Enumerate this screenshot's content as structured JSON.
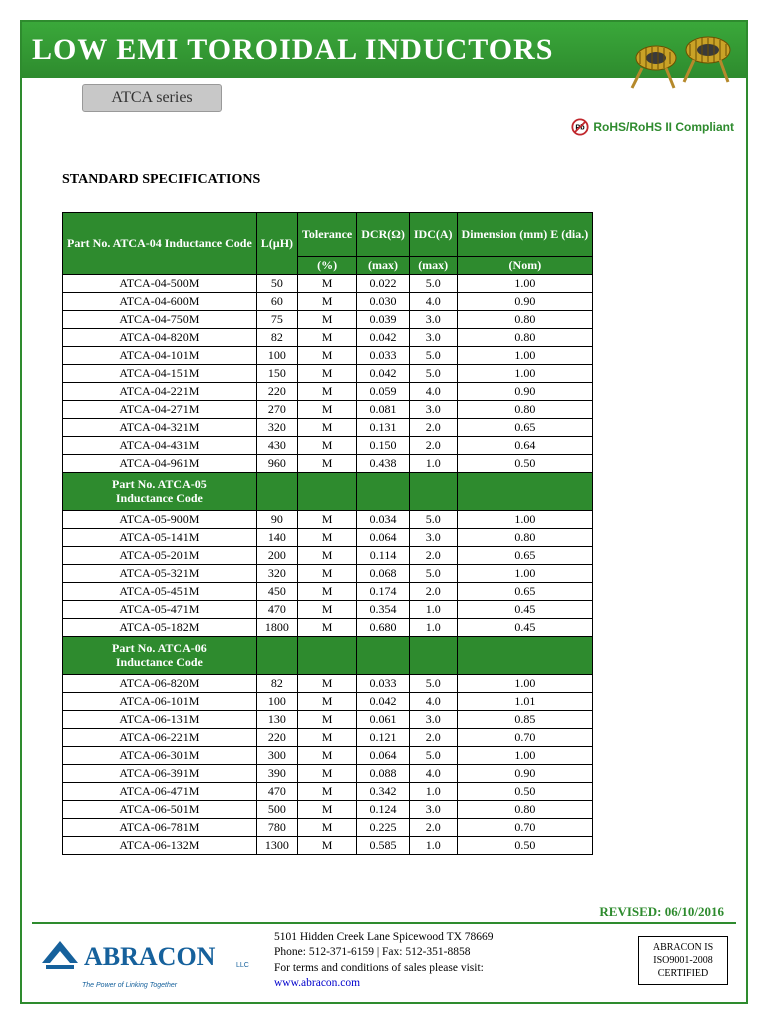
{
  "colors": {
    "green": "#2e8b2e",
    "green_light": "#3aa83a",
    "grey_tab": "#c8c8c8",
    "border": "#000000",
    "link": "#0000cc",
    "logo_blue": "#16619c"
  },
  "title": "LOW EMI TOROIDAL INDUCTORS",
  "series_tab": "ATCA series",
  "rohs_text": "RoHS/RoHS II Compliant",
  "section_title": "STANDARD SPECIFICATIONS",
  "table": {
    "headers_top": [
      "Part No. ATCA-04 Inductance Code",
      "L(µH)",
      "Tolerance",
      "DCR(Ω)",
      "IDC(A)",
      "Dimension (mm) E (dia.)"
    ],
    "headers_sub": [
      "",
      "",
      "(%)",
      "(max)",
      "(max)",
      "(Nom)"
    ],
    "sections": [
      {
        "label": null,
        "rows": [
          [
            "ATCA-04-500M",
            "50",
            "M",
            "0.022",
            "5.0",
            "1.00"
          ],
          [
            "ATCA-04-600M",
            "60",
            "M",
            "0.030",
            "4.0",
            "0.90"
          ],
          [
            "ATCA-04-750M",
            "75",
            "M",
            "0.039",
            "3.0",
            "0.80"
          ],
          [
            "ATCA-04-820M",
            "82",
            "M",
            "0.042",
            "3.0",
            "0.80"
          ],
          [
            "ATCA-04-101M",
            "100",
            "M",
            "0.033",
            "5.0",
            "1.00"
          ],
          [
            "ATCA-04-151M",
            "150",
            "M",
            "0.042",
            "5.0",
            "1.00"
          ],
          [
            "ATCA-04-221M",
            "220",
            "M",
            "0.059",
            "4.0",
            "0.90"
          ],
          [
            "ATCA-04-271M",
            "270",
            "M",
            "0.081",
            "3.0",
            "0.80"
          ],
          [
            "ATCA-04-321M",
            "320",
            "M",
            "0.131",
            "2.0",
            "0.65"
          ],
          [
            "ATCA-04-431M",
            "430",
            "M",
            "0.150",
            "2.0",
            "0.64"
          ],
          [
            "ATCA-04-961M",
            "960",
            "M",
            "0.438",
            "1.0",
            "0.50"
          ]
        ]
      },
      {
        "label": "Part No. ATCA-05 Inductance Code",
        "rows": [
          [
            "ATCA-05-900M",
            "90",
            "M",
            "0.034",
            "5.0",
            "1.00"
          ],
          [
            "ATCA-05-141M",
            "140",
            "M",
            "0.064",
            "3.0",
            "0.80"
          ],
          [
            "ATCA-05-201M",
            "200",
            "M",
            "0.114",
            "2.0",
            "0.65"
          ],
          [
            "ATCA-05-321M",
            "320",
            "M",
            "0.068",
            "5.0",
            "1.00"
          ],
          [
            "ATCA-05-451M",
            "450",
            "M",
            "0.174",
            "2.0",
            "0.65"
          ],
          [
            "ATCA-05-471M",
            "470",
            "M",
            "0.354",
            "1.0",
            "0.45"
          ],
          [
            "ATCA-05-182M",
            "1800",
            "M",
            "0.680",
            "1.0",
            "0.45"
          ]
        ]
      },
      {
        "label": "Part No. ATCA-06 Inductance Code",
        "rows": [
          [
            "ATCA-06-820M",
            "82",
            "M",
            "0.033",
            "5.0",
            "1.00"
          ],
          [
            "ATCA-06-101M",
            "100",
            "M",
            "0.042",
            "4.0",
            "1.01"
          ],
          [
            "ATCA-06-131M",
            "130",
            "M",
            "0.061",
            "3.0",
            "0.85"
          ],
          [
            "ATCA-06-221M",
            "220",
            "M",
            "0.121",
            "2.0",
            "0.70"
          ],
          [
            "ATCA-06-301M",
            "300",
            "M",
            "0.064",
            "5.0",
            "1.00"
          ],
          [
            "ATCA-06-391M",
            "390",
            "M",
            "0.088",
            "4.0",
            "0.90"
          ],
          [
            "ATCA-06-471M",
            "470",
            "M",
            "0.342",
            "1.0",
            "0.50"
          ],
          [
            "ATCA-06-501M",
            "500",
            "M",
            "0.124",
            "3.0",
            "0.80"
          ],
          [
            "ATCA-06-781M",
            "780",
            "M",
            "0.225",
            "2.0",
            "0.70"
          ],
          [
            "ATCA-06-132M",
            "1300",
            "M",
            "0.585",
            "1.0",
            "0.50"
          ]
        ]
      }
    ]
  },
  "footer": {
    "revised_label": "REVISED:  06/10/2016",
    "address_line1": "5101 Hidden Creek Lane Spicewood TX 78669",
    "address_line2": "Phone: 512-371-6159 | Fax: 512-351-8858",
    "address_line3": "For terms and conditions of sales please visit:",
    "website": "www.abracon.com",
    "logo_text": "ABRACON",
    "logo_sub": "LLC",
    "tagline": "The Power of Linking Together",
    "cert_line1": "ABRACON IS",
    "cert_line2": "ISO9001-2008",
    "cert_line3": "CERTIFIED"
  }
}
